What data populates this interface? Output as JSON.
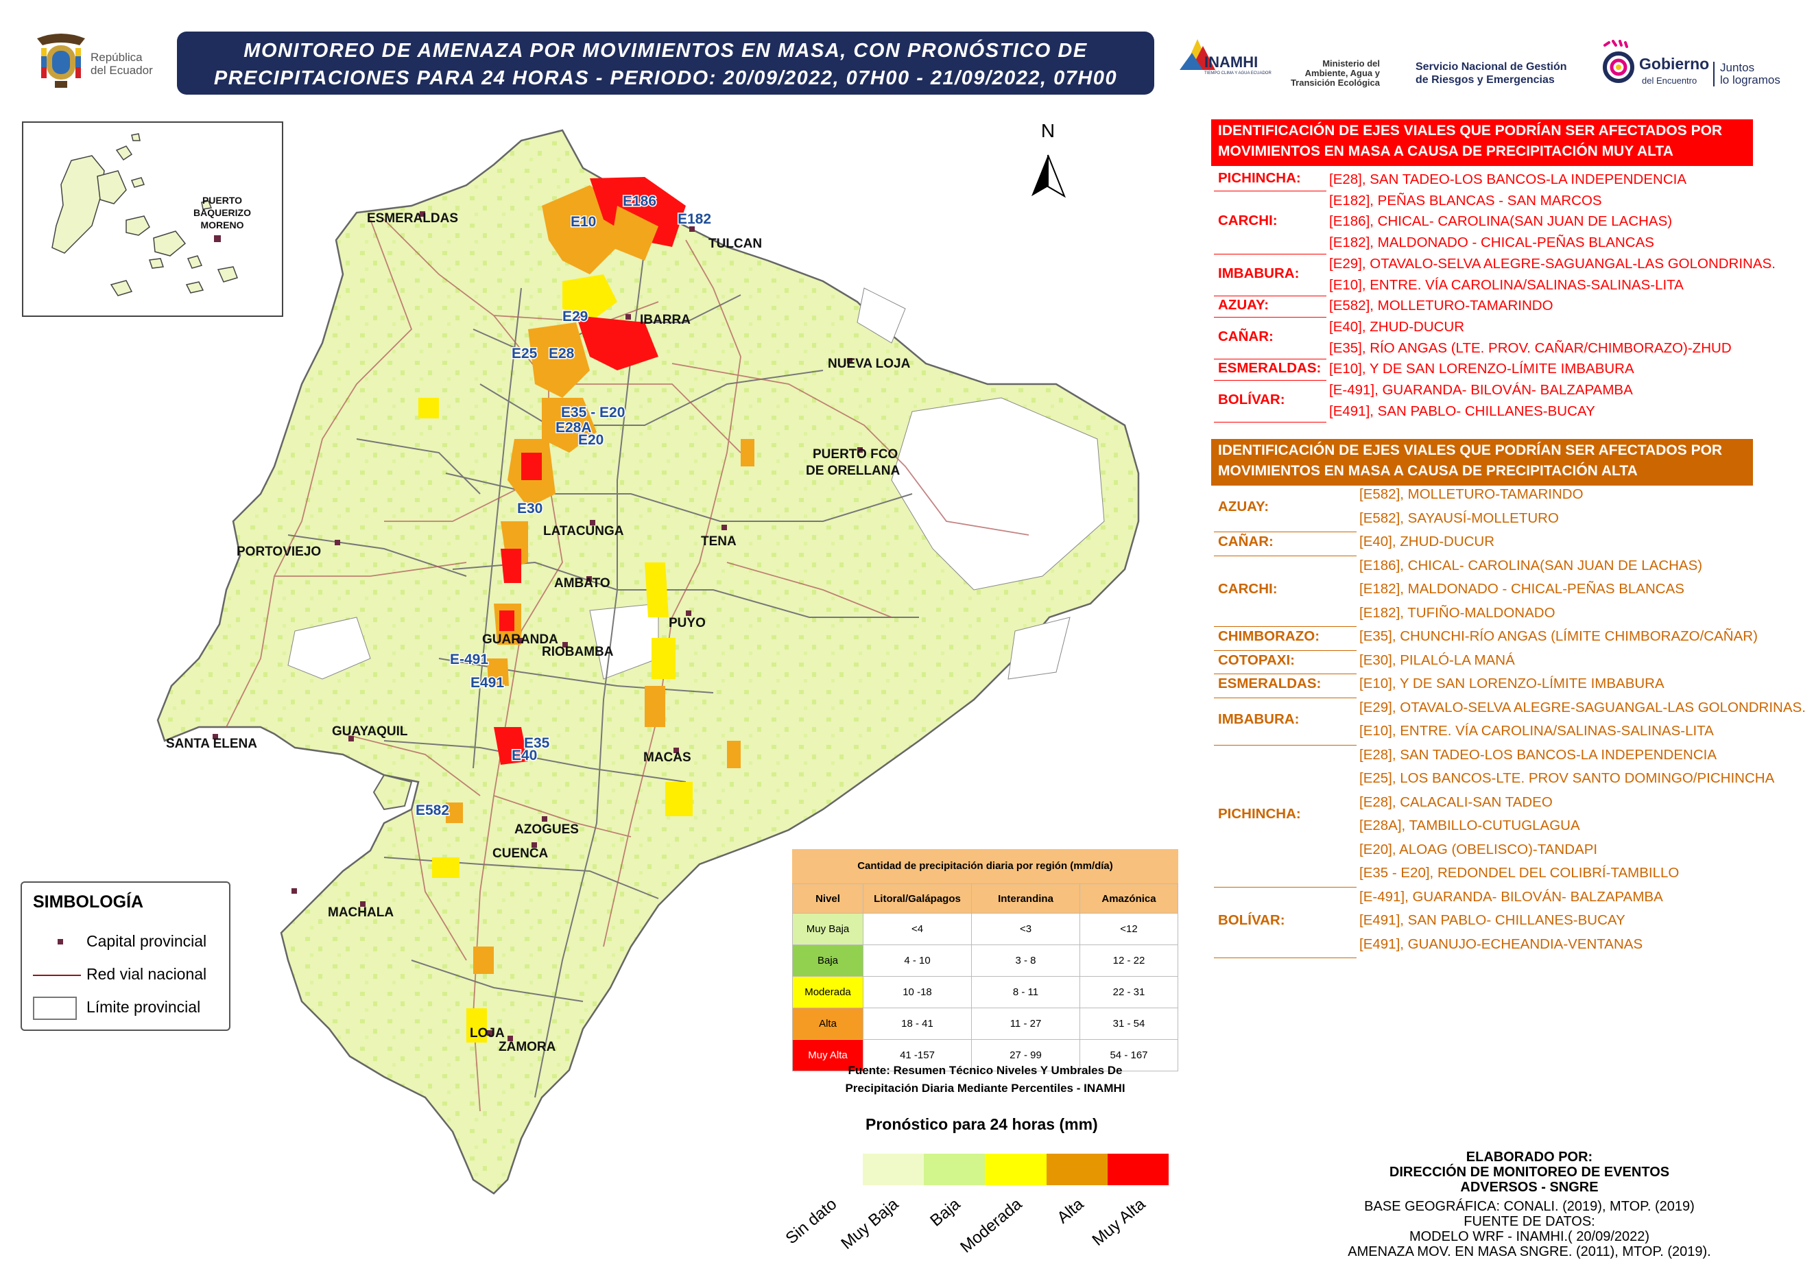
{
  "header": {
    "title_line1": "MONITOREO DE AMENAZA POR MOVIMIENTOS EN MASA, CON PRONÓSTICO DE",
    "title_line2": "PRECIPITACIONES PARA 24 HORAS - PERIODO: 20/09/2022, 07H00 - 21/09/2022, 07H00"
  },
  "logos": {
    "republica_line1": "República",
    "republica_line2": "del Ecuador",
    "inamhi": "INAMHI",
    "inamhi_sub": "TIEMPO CLIMA Y AGUA ECUADOR",
    "ministerio_line1": "Ministerio del",
    "ministerio_line2": "Ambiente, Agua y",
    "ministerio_line3": "Transición Ecológica",
    "sngre_line1": "Servicio Nacional de Gestión",
    "sngre_line2": "de Riesgos y Emergencias",
    "gobierno_line1": "Gobierno",
    "gobierno_line2": "del Encuentro",
    "juntos_line1": "Juntos",
    "juntos_line2": "lo logramos"
  },
  "inset": {
    "label_line1": "PUERTO",
    "label_line2": "BAQUERIZO",
    "label_line3": "MORENO"
  },
  "north_arrow": "N",
  "cities": [
    "ESMERALDAS",
    "TULCAN",
    "IBARRA",
    "NUEVA LOJA",
    "PUERTO FCO",
    "DE ORELLANA",
    "LATACUNGA",
    "TENA",
    "PORTOVIEJO",
    "AMBATO",
    "PUYO",
    "GUARANDA",
    "RIOBAMBA",
    "SANTA ELENA",
    "GUAYAQUIL",
    "MACAS",
    "AZOGUES",
    "CUENCA",
    "MACHALA",
    "LOJA",
    "ZAMORA"
  ],
  "road_labels": [
    "E186",
    "E10",
    "E182",
    "E29",
    "E25",
    "E28",
    "E35 - E20",
    "E28A",
    "E20",
    "E30",
    "E-491",
    "E491",
    "E35",
    "E40",
    "E582"
  ],
  "panel_muy_alta": {
    "title_line1": "IDENTIFICACIÓN DE EJES VIALES QUE PODRÍAN SER AFECTADOS POR",
    "title_line2": "MOVIMIENTOS EN MASA A CAUSA DE  PRECIPITACIÓN MUY ALTA",
    "color": "#ff0000",
    "groups": [
      {
        "province": "PICHINCHA:",
        "roads": [
          "[E28], SAN TADEO-LOS BANCOS-LA INDEPENDENCIA"
        ]
      },
      {
        "province": "CARCHI:",
        "roads": [
          "[E182], PEÑAS BLANCAS - SAN MARCOS",
          "[E186], CHICAL- CAROLINA(SAN JUAN DE LACHAS)",
          "[E182], MALDONADO - CHICAL-PEÑAS BLANCAS"
        ]
      },
      {
        "province": "IMBABURA:",
        "roads": [
          "[E29], OTAVALO-SELVA ALEGRE-SAGUANGAL-LAS GOLONDRINAS.",
          "[E10], ENTRE. VÍA CAROLINA/SALINAS-SALINAS-LITA"
        ]
      },
      {
        "province": "AZUAY:",
        "roads": [
          "[E582], MOLLETURO-TAMARINDO"
        ]
      },
      {
        "province": "CAÑAR:",
        "roads": [
          "[E40], ZHUD-DUCUR",
          "[E35], RÍO ANGAS (LTE. PROV. CAÑAR/CHIMBORAZO)-ZHUD"
        ]
      },
      {
        "province": "ESMERALDAS:",
        "roads": [
          "[E10], Y DE SAN LORENZO-LÍMITE IMBABURA"
        ]
      },
      {
        "province": "BOLÍVAR:",
        "roads": [
          "[E-491], GUARANDA- BILOVÁN- BALZAPAMBA",
          "[E491], SAN PABLO- CHILLANES-BUCAY"
        ]
      }
    ]
  },
  "panel_alta": {
    "title_line1": "IDENTIFICACIÓN DE EJES VIALES QUE PODRÍAN SER AFECTADOS POR",
    "title_line2": "MOVIMIENTOS EN MASA A CAUSA DE  PRECIPITACIÓN ALTA",
    "color": "#cc6600",
    "groups": [
      {
        "province": "AZUAY:",
        "roads": [
          "[E582], MOLLETURO-TAMARINDO",
          "[E582], SAYAUSÍ-MOLLETURO"
        ]
      },
      {
        "province": "CAÑAR:",
        "roads": [
          "[E40], ZHUD-DUCUR"
        ]
      },
      {
        "province": "CARCHI:",
        "roads": [
          "[E186], CHICAL- CAROLINA(SAN JUAN DE LACHAS)",
          "[E182], MALDONADO - CHICAL-PEÑAS BLANCAS",
          "[E182], TUFIÑO-MALDONADO"
        ]
      },
      {
        "province": "CHIMBORAZO:",
        "roads": [
          "[E35], CHUNCHI-RÍO ANGAS (LÍMITE CHIMBORAZO/CAÑAR)"
        ]
      },
      {
        "province": "COTOPAXI:",
        "roads": [
          "[E30], PILALÓ-LA MANÁ"
        ]
      },
      {
        "province": "ESMERALDAS:",
        "roads": [
          "[E10], Y DE SAN LORENZO-LÍMITE IMBABURA"
        ]
      },
      {
        "province": "IMBABURA:",
        "roads": [
          "[E29], OTAVALO-SELVA ALEGRE-SAGUANGAL-LAS GOLONDRINAS.",
          "[E10], ENTRE. VÍA CAROLINA/SALINAS-SALINAS-LITA"
        ]
      },
      {
        "province": "PICHINCHA:",
        "roads": [
          "[E28], SAN TADEO-LOS BANCOS-LA INDEPENDENCIA",
          "[E25], LOS BANCOS-LTE. PROV SANTO DOMINGO/PICHINCHA",
          "[E28], CALACALI-SAN TADEO",
          "[E28A], TAMBILLO-CUTUGLAGUA",
          "[E20], ALOAG (OBELISCO)-TANDAPI",
          "[E35 - E20], REDONDEL DEL COLIBRÍ-TAMBILLO"
        ]
      },
      {
        "province": "BOLÍVAR:",
        "roads": [
          "[E-491], GUARANDA- BILOVÁN- BALZAPAMBA",
          "[E491], SAN PABLO- CHILLANES-BUCAY",
          "[E491], GUANUJO-ECHEANDIA-VENTANAS"
        ]
      }
    ]
  },
  "legend": {
    "title": "SIMBOLOGÍA",
    "items": [
      "Capital provincial",
      "Red vial nacional",
      "Límite provincial"
    ]
  },
  "table": {
    "title": "Cantidad de precipitación diaria por región (mm/día)",
    "headers": [
      "Nivel",
      "Litoral/Galápagos",
      "Interandina",
      "Amazónica"
    ],
    "rows": [
      {
        "level": "Muy Baja",
        "color": "#d9f2a6",
        "values": [
          "<4",
          "<3",
          "<12"
        ]
      },
      {
        "level": "Baja",
        "color": "#92d050",
        "values": [
          "4 - 10",
          "3 - 8",
          "12 - 22"
        ]
      },
      {
        "level": "Moderada",
        "color": "#ffff00",
        "values": [
          "10 -18",
          "8 - 11",
          "22 - 31"
        ]
      },
      {
        "level": "Alta",
        "color": "#f59a23",
        "values": [
          "18 - 41",
          "11 - 27",
          "31 - 54"
        ]
      },
      {
        "level": "Muy Alta",
        "color": "#ff0000",
        "values": [
          "41 -157",
          "27 - 99",
          "54 - 167"
        ]
      }
    ],
    "source_line1": "Fuente: Resumen Técnico Niveles Y Umbrales De",
    "source_line2": "Precipitación Diaria Mediante Percentiles - INAMHI"
  },
  "forecast_scale": {
    "title": "Pronóstico para 24 horas (mm)",
    "labels": [
      "Sin dato",
      "Muy Baja",
      "Baja",
      "Moderada",
      "Alta",
      "Muy Alta"
    ],
    "colors": [
      "#f0fac8",
      "#d2f58c",
      "#ffff00",
      "#e69600",
      "#ff0000"
    ]
  },
  "credits": {
    "line1": "ELABORADO POR:",
    "line2": "DIRECCIÓN DE MONITOREO DE EVENTOS",
    "line3": "ADVERSOS - SNGRE",
    "line4": "BASE GEOGRÁFICA: CONALI. (2019), MTOP. (2019)",
    "line5": "FUENTE DE DATOS:",
    "line6": "MODELO WRF - INAMHI.( 20/09/2022)",
    "line7": "AMENAZA MOV. EN MASA SNGRE. (2011), MTOP. (2019)."
  }
}
